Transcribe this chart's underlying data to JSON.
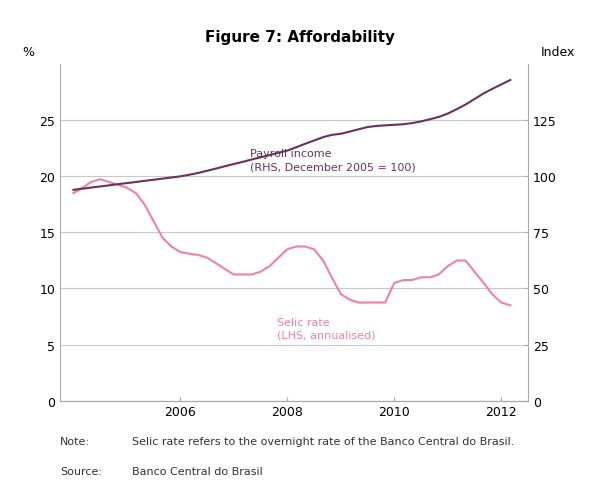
{
  "title": "Figure 7: Affordability",
  "ylabel_left": "%",
  "ylabel_right": "Index",
  "ylim_left": [
    0,
    30
  ],
  "ylim_right": [
    0,
    150
  ],
  "yticks_left": [
    0,
    5,
    10,
    15,
    20,
    25
  ],
  "yticks_right": [
    0,
    25,
    50,
    75,
    100,
    125
  ],
  "xlim": [
    2003.75,
    2012.5
  ],
  "xticks": [
    2006,
    2008,
    2010,
    2012
  ],
  "note_label": "Note:",
  "note_text": "Selic rate refers to the overnight rate of the Banco Central do Brasil.",
  "source_label": "Source:",
  "source_text": "Banco Central do Brasil",
  "selic_label": "Selic rate\n(LHS, annualised)",
  "payroll_label": "Payroll income\n(RHS, December 2005 = 100)",
  "selic_color": "#f080a8",
  "payroll_color": "#6b3060",
  "background_color": "#ffffff",
  "grid_color": "#c8c8c8",
  "selic_x": [
    2004.0,
    2004.17,
    2004.33,
    2004.5,
    2004.67,
    2004.83,
    2005.0,
    2005.17,
    2005.33,
    2005.5,
    2005.67,
    2005.83,
    2006.0,
    2006.17,
    2006.33,
    2006.5,
    2006.67,
    2006.83,
    2007.0,
    2007.17,
    2007.33,
    2007.5,
    2007.67,
    2007.83,
    2008.0,
    2008.17,
    2008.33,
    2008.5,
    2008.67,
    2008.83,
    2009.0,
    2009.17,
    2009.33,
    2009.5,
    2009.67,
    2009.83,
    2010.0,
    2010.17,
    2010.33,
    2010.5,
    2010.67,
    2010.83,
    2011.0,
    2011.17,
    2011.33,
    2011.5,
    2011.67,
    2011.83,
    2012.0,
    2012.17
  ],
  "selic_y": [
    18.5,
    19.0,
    19.5,
    19.75,
    19.5,
    19.25,
    19.0,
    18.5,
    17.5,
    16.0,
    14.5,
    13.75,
    13.25,
    13.1,
    13.0,
    12.75,
    12.25,
    11.75,
    11.25,
    11.25,
    11.25,
    11.5,
    12.0,
    12.75,
    13.5,
    13.75,
    13.75,
    13.5,
    12.5,
    11.0,
    9.5,
    9.0,
    8.75,
    8.75,
    8.75,
    8.75,
    10.5,
    10.75,
    10.75,
    11.0,
    11.0,
    11.25,
    12.0,
    12.5,
    12.5,
    11.5,
    10.5,
    9.5,
    8.75,
    8.5
  ],
  "payroll_x": [
    2004.0,
    2004.17,
    2004.33,
    2004.5,
    2004.67,
    2004.83,
    2005.0,
    2005.17,
    2005.33,
    2005.5,
    2005.67,
    2005.83,
    2006.0,
    2006.17,
    2006.33,
    2006.5,
    2006.67,
    2006.83,
    2007.0,
    2007.17,
    2007.33,
    2007.5,
    2007.67,
    2007.83,
    2008.0,
    2008.17,
    2008.33,
    2008.5,
    2008.67,
    2008.83,
    2009.0,
    2009.17,
    2009.33,
    2009.5,
    2009.67,
    2009.83,
    2010.0,
    2010.17,
    2010.33,
    2010.5,
    2010.67,
    2010.83,
    2011.0,
    2011.17,
    2011.33,
    2011.5,
    2011.67,
    2011.83,
    2012.0,
    2012.17
  ],
  "payroll_y_index": [
    94,
    94.5,
    95,
    95.5,
    96,
    96.5,
    97,
    97.5,
    98,
    98.5,
    99,
    99.5,
    100,
    100.75,
    101.5,
    102.5,
    103.5,
    104.5,
    105.5,
    106.5,
    107.5,
    108.5,
    109.5,
    110.5,
    111.5,
    113,
    114.5,
    116,
    117.5,
    118.5,
    119,
    120,
    121,
    122,
    122.5,
    122.75,
    123,
    123.25,
    123.75,
    124.5,
    125.5,
    126.5,
    128,
    130,
    132,
    134.5,
    137,
    139,
    141,
    143
  ]
}
